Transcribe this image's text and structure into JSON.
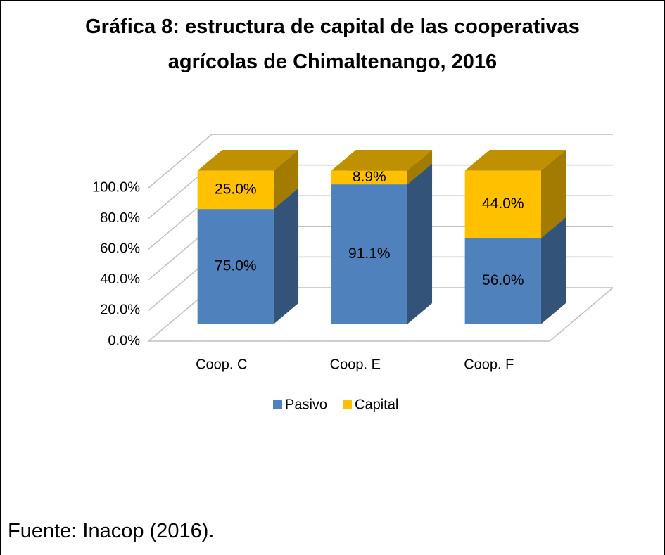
{
  "chart_data": {
    "type": "bar3d_stacked",
    "title": "Gráfica 8: estructura de capital de las cooperativas agrícolas de Chimaltenango, 2016",
    "source": "Fuente: Inacop (2016).",
    "categories": [
      "Coop. C",
      "Coop. E",
      "Coop. F"
    ],
    "series": [
      {
        "name": "Pasivo",
        "color": "#4f81bd",
        "values": [
          75.0,
          91.1,
          56.0
        ],
        "value_labels": [
          "75.0%",
          "91.1%",
          "56.0%"
        ]
      },
      {
        "name": "Capital",
        "color": "#ffc000",
        "values": [
          25.0,
          8.9,
          44.0
        ],
        "value_labels": [
          "25.0%",
          "8.9%",
          "44.0%"
        ]
      }
    ],
    "ylim": [
      0,
      100
    ],
    "yticks": [
      {
        "value": 0,
        "label": "0.0%"
      },
      {
        "value": 20,
        "label": "20.0%"
      },
      {
        "value": 40,
        "label": "40.0%"
      },
      {
        "value": 60,
        "label": "60.0%"
      },
      {
        "value": 80,
        "label": "80.0%"
      },
      {
        "value": 100,
        "label": "100.0%"
      }
    ],
    "grid": true,
    "legend": "bottom"
  }
}
